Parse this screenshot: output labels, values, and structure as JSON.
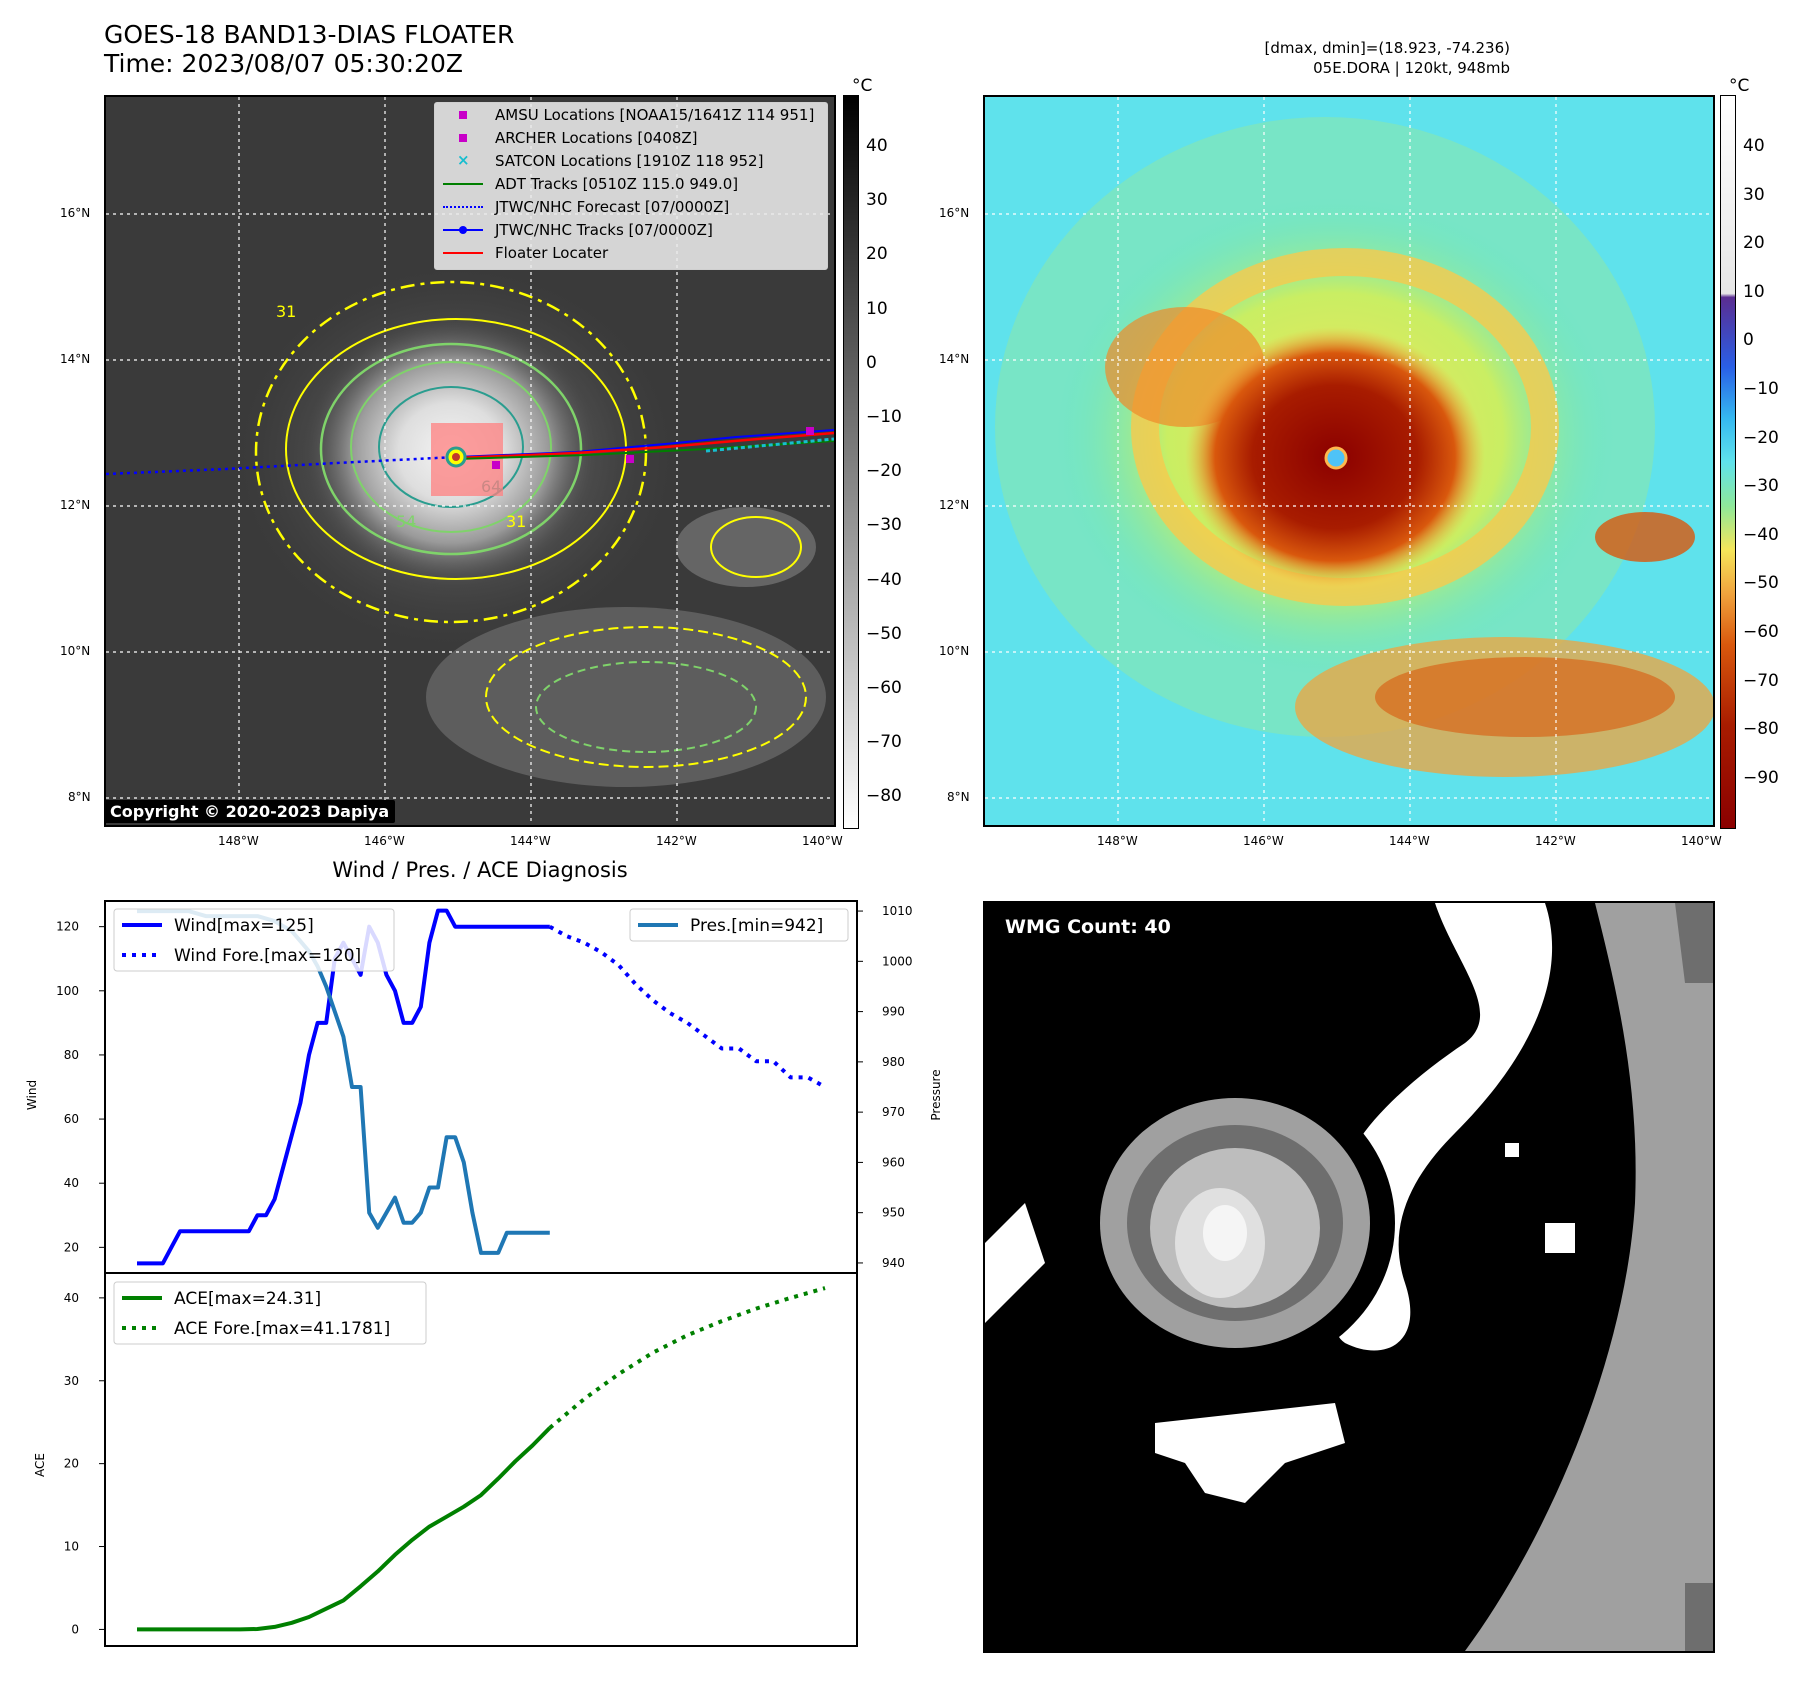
{
  "header": {
    "title_line1": "GOES-18 BAND13-DIAS FLOATER",
    "title_line2": "Time: 2023/08/07 05:30:20Z",
    "right_line1": "[dmax, dmin]=(18.923, -74.236)",
    "right_line2": "05E.DORA | 120kt, 948mb"
  },
  "map": {
    "lat_labels": [
      "16°N",
      "14°N",
      "12°N",
      "10°N",
      "8°N"
    ],
    "lon_labels": [
      "148°W",
      "146°W",
      "144°W",
      "142°W",
      "140°W"
    ],
    "copyright": "Copyright © 2020-2023 Dapiya",
    "contour_labels": [
      "31",
      "54",
      "64",
      "31"
    ]
  },
  "colorbar_gray": {
    "unit": "°C",
    "ticks": [
      "40",
      "30",
      "20",
      "10",
      "0",
      "−10",
      "−20",
      "−30",
      "−40",
      "−50",
      "−60",
      "−70",
      "−80"
    ]
  },
  "colorbar_color": {
    "unit": "°C",
    "ticks": [
      "40",
      "30",
      "20",
      "10",
      "0",
      "−10",
      "−20",
      "−30",
      "−40",
      "−50",
      "−60",
      "−70",
      "−80",
      "−90"
    ]
  },
  "legend_tracks": [
    {
      "label": "AMSU Locations [NOAA15/1641Z 114 951]",
      "color": "#c800c8",
      "marker": "square"
    },
    {
      "label": "ARCHER Locations [0408Z]",
      "color": "#c800c8",
      "marker": "square"
    },
    {
      "label": "SATCON Locations [1910Z 118 952]",
      "color": "#17becf",
      "marker": "x"
    },
    {
      "label": "ADT Tracks [0510Z 115.0 949.0]",
      "color": "#007f00",
      "marker": "line"
    },
    {
      "label": "JTWC/NHC Forecast [07/0000Z]",
      "color": "#0000ff",
      "marker": "dotted"
    },
    {
      "label": "JTWC/NHC Tracks [07/0000Z]",
      "color": "#0000ff",
      "marker": "line-dot"
    },
    {
      "label": "Floater Locater",
      "color": "#ff0000",
      "marker": "line"
    }
  ],
  "diagnosis": {
    "title": "Wind / Pres. / ACE Diagnosis",
    "wind_axis_label": "Wind",
    "pressure_axis_label": "Pressure",
    "ace_axis_label": "ACE",
    "legend_wind": "Wind[max=125]",
    "legend_wind_fore": "Wind Fore.[max=120]",
    "legend_pres": "Pres.[min=942]",
    "legend_ace": "ACE[max=24.31]",
    "legend_ace_fore": "ACE Fore.[max=41.1781]"
  },
  "wmg": {
    "badge": "WMG Count: 40"
  },
  "colors": {
    "wind": "#0000ff",
    "pressure": "#1f77b4",
    "ace": "#008000",
    "floater_box": "#ff8080",
    "contour_yellow": "#ffff00",
    "contour_green": "#7fd36a",
    "contour_teal": "#2a9d8f"
  },
  "chart_data": [
    {
      "type": "line",
      "name": "wind",
      "ylabel": "Wind",
      "ylim": [
        12,
        128
      ],
      "yticks": [
        20,
        40,
        60,
        80,
        100,
        120
      ],
      "series": [
        {
          "name": "Wind[max=125]",
          "style": "solid",
          "x": [
            0,
            1,
            2,
            3,
            4,
            5,
            6,
            7,
            8,
            9,
            10,
            11,
            12,
            13,
            14,
            15,
            16,
            17,
            18,
            19,
            20,
            21,
            22,
            23,
            24,
            25,
            26,
            27,
            28,
            29,
            30,
            31,
            32,
            33,
            34,
            35,
            36,
            37,
            38,
            39,
            40,
            41,
            42,
            43,
            44,
            45,
            46,
            47,
            48
          ],
          "values": [
            15,
            15,
            15,
            15,
            20,
            25,
            25,
            25,
            25,
            25,
            25,
            25,
            25,
            25,
            30,
            30,
            35,
            45,
            55,
            65,
            80,
            90,
            90,
            110,
            115,
            110,
            105,
            120,
            115,
            105,
            100,
            90,
            90,
            95,
            115,
            125,
            125,
            120,
            120,
            120,
            120,
            120,
            120,
            120,
            120,
            120,
            120,
            120,
            120
          ]
        },
        {
          "name": "Wind Fore.[max=120]",
          "style": "dotted",
          "x": [
            48,
            50,
            52,
            54,
            56,
            58,
            60,
            62,
            64,
            66,
            68,
            70,
            72,
            74,
            76,
            78,
            80
          ],
          "values": [
            120,
            117,
            115,
            112,
            108,
            102,
            97,
            93,
            90,
            86,
            82,
            82,
            78,
            78,
            73,
            73,
            70
          ]
        }
      ],
      "y2": {
        "ylabel": "Pressure",
        "ylim": [
          938,
          1012
        ],
        "yticks": [
          940,
          950,
          960,
          970,
          980,
          990,
          1000,
          1010
        ],
        "series": [
          {
            "name": "Pres.[min=942]",
            "style": "solid",
            "x": [
              0,
              2,
              4,
              6,
              8,
              10,
              12,
              14,
              16,
              18,
              19,
              20,
              21,
              22,
              23,
              24,
              25,
              26,
              27,
              28,
              29,
              30,
              31,
              32,
              33,
              34,
              35,
              36,
              37,
              38,
              39,
              40,
              41,
              42,
              43,
              44,
              45,
              46,
              47,
              48
            ],
            "values": [
              1010,
              1010,
              1010,
              1010,
              1009,
              1009,
              1009,
              1009,
              1008,
              1006,
              1004,
              1002,
              999,
              995,
              990,
              985,
              975,
              975,
              950,
              947,
              950,
              953,
              948,
              948,
              950,
              955,
              955,
              965,
              965,
              960,
              950,
              942,
              942,
              942,
              946,
              946,
              946,
              946,
              946,
              946
            ]
          }
        ]
      }
    },
    {
      "type": "line",
      "name": "ace",
      "ylabel": "ACE",
      "ylim": [
        -2,
        43
      ],
      "yticks": [
        0,
        10,
        20,
        30,
        40
      ],
      "series": [
        {
          "name": "ACE[max=24.31]",
          "style": "solid",
          "x": [
            0,
            4,
            8,
            12,
            14,
            16,
            18,
            20,
            22,
            24,
            26,
            28,
            30,
            32,
            34,
            36,
            38,
            40,
            42,
            44,
            46,
            48
          ],
          "values": [
            0.0,
            0.0,
            0.0,
            0.0,
            0.05,
            0.3,
            0.8,
            1.5,
            2.5,
            3.5,
            5.2,
            7.0,
            9.0,
            10.8,
            12.4,
            13.6,
            14.8,
            16.2,
            18.2,
            20.3,
            22.2,
            24.31
          ]
        },
        {
          "name": "ACE Fore.[max=41.1781]",
          "style": "dotted",
          "x": [
            48,
            52,
            56,
            60,
            64,
            68,
            72,
            76,
            80
          ],
          "values": [
            24.31,
            27.8,
            30.8,
            33.4,
            35.5,
            37.2,
            38.7,
            40.0,
            41.18
          ]
        }
      ]
    }
  ]
}
